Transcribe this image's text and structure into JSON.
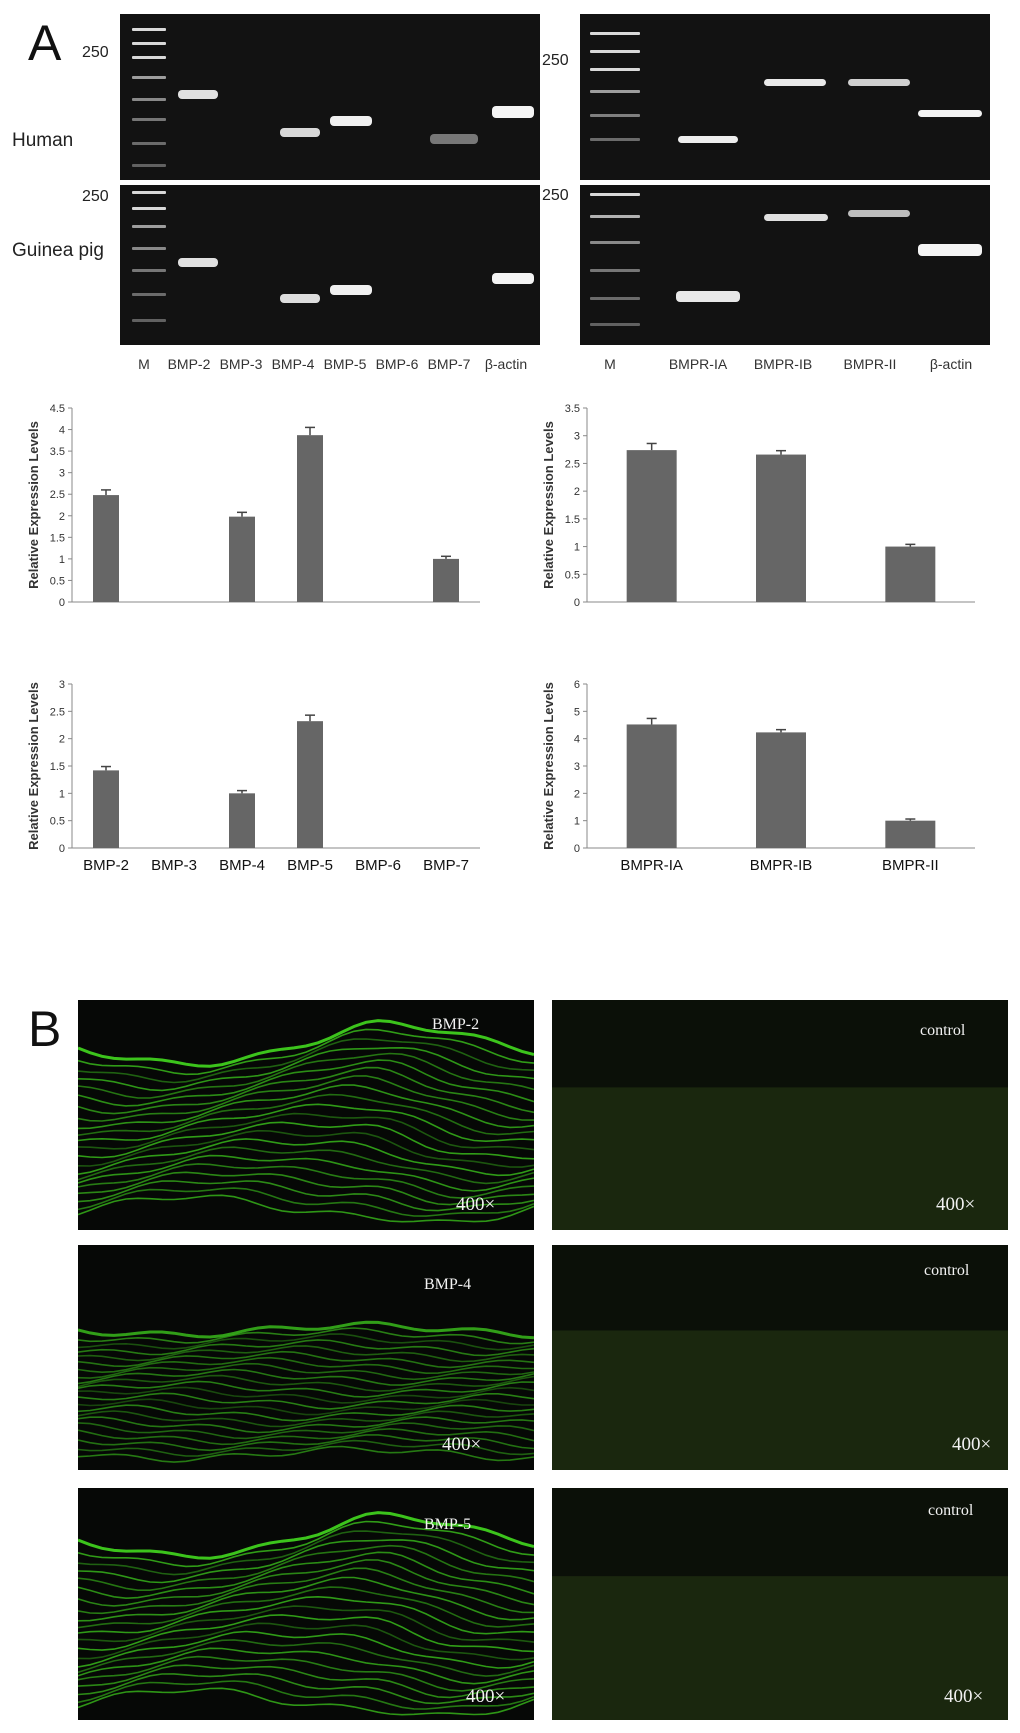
{
  "panel_a_letter": "A",
  "panel_b_letter": "B",
  "gel": {
    "row_labels": [
      "Human",
      "Guinea pig"
    ],
    "marker_label": "250",
    "left_lanes": [
      "M",
      "BMP-2",
      "BMP-3",
      "BMP-4",
      "BMP-5",
      "BMP-6",
      "BMP-7",
      "β-actin"
    ],
    "right_lanes": [
      "M",
      "BMPR-IA",
      "BMPR-IB",
      "BMPR-II",
      "β-actin"
    ]
  },
  "chart_data": [
    {
      "type": "bar",
      "ylabel": "Relative Expression Levels",
      "categories": [
        "BMP-2",
        "BMP-3",
        "BMP-4",
        "BMP-5",
        "BMP-6",
        "BMP-7"
      ],
      "values": [
        2.48,
        0,
        1.98,
        3.87,
        0,
        1.0
      ],
      "errors": [
        0.12,
        0,
        0.1,
        0.18,
        0,
        0.06
      ],
      "ylim": [
        0,
        4.5
      ],
      "yticks": [
        "0",
        "0.5",
        "1",
        "1.5",
        "2",
        "2.5",
        "3",
        "3.5",
        "4",
        "4.5"
      ],
      "show_category_labels": false
    },
    {
      "type": "bar",
      "ylabel": "Relative Expression Levels",
      "categories": [
        "BMPR-IA",
        "BMPR-IB",
        "BMPR-II"
      ],
      "values": [
        2.74,
        2.66,
        1.0
      ],
      "errors": [
        0.12,
        0.07,
        0.04
      ],
      "ylim": [
        0,
        3.5
      ],
      "yticks": [
        "0",
        "0.5",
        "1",
        "1.5",
        "2",
        "2.5",
        "3",
        "3.5"
      ],
      "show_category_labels": false
    },
    {
      "type": "bar",
      "ylabel": "Relative Expression Levels",
      "categories": [
        "BMP-2",
        "BMP-3",
        "BMP-4",
        "BMP-5",
        "BMP-6",
        "BMP-7"
      ],
      "values": [
        1.42,
        0,
        1.0,
        2.32,
        0,
        0
      ],
      "errors": [
        0.07,
        0,
        0.05,
        0.11,
        0,
        0
      ],
      "ylim": [
        0,
        3
      ],
      "yticks": [
        "0",
        "0.5",
        "1",
        "1.5",
        "2",
        "2.5",
        "3"
      ],
      "show_category_labels": true
    },
    {
      "type": "bar",
      "ylabel": "Relative Expression Levels",
      "categories": [
        "BMPR-IA",
        "BMPR-IB",
        "BMPR-II"
      ],
      "values": [
        4.52,
        4.23,
        1.0
      ],
      "errors": [
        0.22,
        0.1,
        0.06
      ],
      "ylim": [
        0,
        6
      ],
      "yticks": [
        "0",
        "1",
        "2",
        "3",
        "4",
        "5",
        "6"
      ],
      "show_category_labels": true
    }
  ],
  "micrographs": [
    {
      "title": "BMP-2",
      "magnification": "400×"
    },
    {
      "title": "control",
      "magnification": "400×"
    },
    {
      "title": "BMP-4",
      "magnification": "400×"
    },
    {
      "title": "control",
      "magnification": "400×"
    },
    {
      "title": "BMP-5",
      "magnification": "400×"
    },
    {
      "title": "control",
      "magnification": "400×"
    }
  ],
  "colors": {
    "bar": "#666666",
    "gel_background": "#121212",
    "band": "#e8e8e8",
    "fluorescence": "#3fcf1e",
    "control_tint": "#1c2a10"
  }
}
